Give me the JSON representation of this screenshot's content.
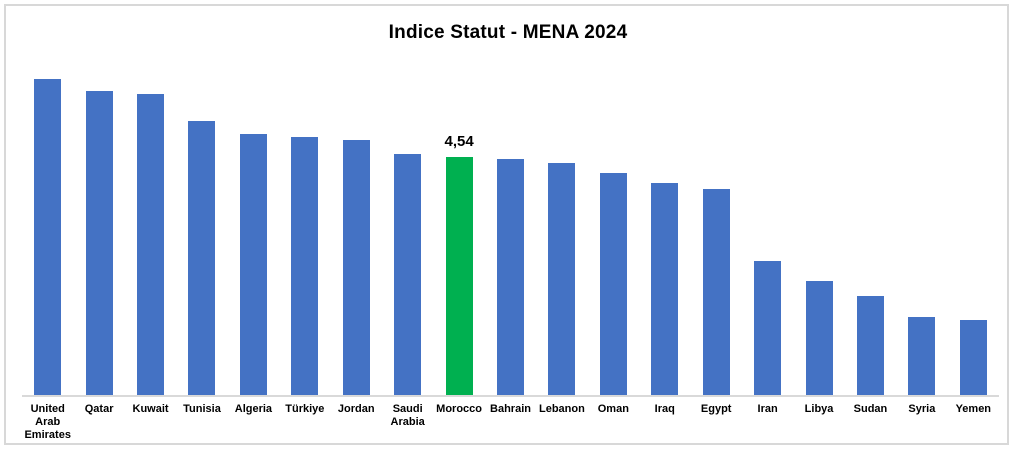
{
  "frame": {
    "border_color": "#D8D8D8",
    "background_color": "#FFFFFF"
  },
  "chart_data": {
    "type": "bar",
    "title": "Indice Statut - MENA 2024",
    "categories": [
      "United Arab Emirates",
      "Qatar",
      "Kuwait",
      "Tunisia",
      "Algeria",
      "Türkiye",
      "Jordan",
      "Saudi Arabia",
      "Morocco",
      "Bahrain",
      "Lebanon",
      "Oman",
      "Iraq",
      "Egypt",
      "Iran",
      "Libya",
      "Sudan",
      "Syria",
      "Yemen"
    ],
    "values": [
      6.03,
      5.8,
      5.74,
      5.23,
      4.98,
      4.92,
      4.86,
      4.6,
      4.54,
      4.5,
      4.43,
      4.24,
      4.04,
      3.93,
      2.56,
      2.17,
      1.89,
      1.49,
      1.43
    ],
    "bar_color": "#4472C4",
    "highlight": {
      "category": "Morocco",
      "index": 8,
      "color": "#00B050",
      "data_label": "4,54",
      "value": 4.54
    },
    "xlabel": "",
    "ylabel": "",
    "ylim": [
      0,
      6.5
    ],
    "grid": false,
    "legend": false,
    "y_axis_visible": false,
    "axis_line_color": "#D9D9D9"
  }
}
